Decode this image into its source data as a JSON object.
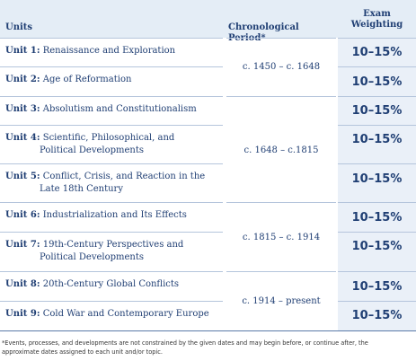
{
  "header": {
    "units": "Units",
    "period": "Chronological Period*",
    "exam_line1": "Exam",
    "exam_line2": "Weighting"
  },
  "units": [
    {
      "label": "Unit 1:",
      "title": "Renaissance and Exploration",
      "weight": "10–15%"
    },
    {
      "label": "Unit 2:",
      "title": "Age of Reformation",
      "weight": "10–15%"
    },
    {
      "label": "Unit 3:",
      "title": "Absolutism and Constitutionalism",
      "weight": "10–15%"
    },
    {
      "label": "Unit 4:",
      "title": "Scientific, Philosophical, and",
      "title2": "Political Developments",
      "weight": "10–15%"
    },
    {
      "label": "Unit 5:",
      "title": "Conflict, Crisis, and Reaction in the",
      "title2": "Late 18th Century",
      "weight": "10–15%"
    },
    {
      "label": "Unit 6:",
      "title": "Industrialization and Its Effects",
      "weight": "10–15%"
    },
    {
      "label": "Unit 7:",
      "title": "19th-Century Perspectives and",
      "title2": "Political Developments",
      "weight": "10–15%"
    },
    {
      "label": "Unit 8:",
      "title": "20th-Century Global Conflicts",
      "weight": "10–15%"
    },
    {
      "label": "Unit 9:",
      "title": "Cold War and Contemporary Europe",
      "weight": "10–15%"
    }
  ],
  "periods": [
    "c. 1450 – c. 1648",
    "c. 1648 – c.1815",
    "c. 1815 – c. 1914",
    "c. 1914 – present"
  ],
  "footnote_line1": "*Events, processes, and developments are not constrained by the given dates and may begin before, or continue after, the",
  "footnote_line2": "approximate dates assigned to each unit and/or topic."
}
